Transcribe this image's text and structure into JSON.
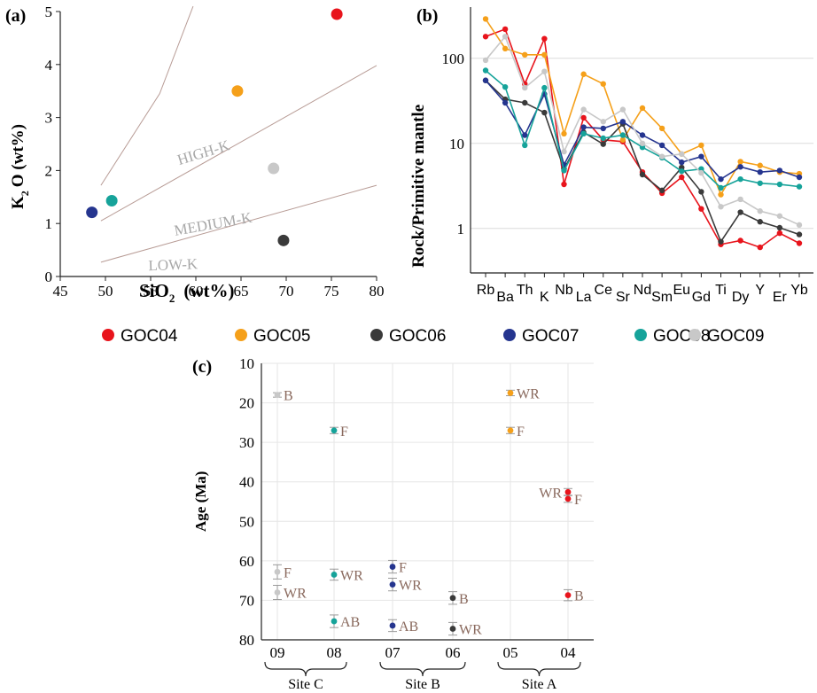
{
  "colors": {
    "GOC04": "#e8141c",
    "GOC05": "#f5a01a",
    "GOC06": "#3a3a3a",
    "GOC07": "#25358f",
    "GOC08": "#16a39a",
    "GOC09": "#c8c8c8",
    "trend_text": "#a8a8a8",
    "label_text": "#8a6a5e",
    "divider": "#b89a92"
  },
  "legend": {
    "items": [
      {
        "name": "GOC04",
        "label": "GOC04"
      },
      {
        "name": "GOC05",
        "label": "GOC05"
      },
      {
        "name": "GOC06",
        "label": "GOC06"
      },
      {
        "name": "GOC07",
        "label": "GOC07"
      },
      {
        "name": "GOC08",
        "label": "GOC08"
      },
      {
        "name": "GOC09",
        "label": "GOC09"
      }
    ]
  },
  "chart_data": [
    {
      "panel": "(a)",
      "type": "scatter",
      "xlabel": "SiO",
      "xlabel_sub": "2",
      "xlabel_unit": "(wt%)",
      "ylabel": "K",
      "ylabel_sub": "2",
      "ylabel_rest": "O (wt%)",
      "xlim": [
        45,
        80
      ],
      "ylim": [
        0,
        5
      ],
      "xticks": [
        45,
        50,
        55,
        60,
        65,
        70,
        75,
        80
      ],
      "yticks": [
        0,
        1,
        2,
        3,
        4,
        5
      ],
      "points": [
        {
          "sample": "GOC04",
          "x": 75.6,
          "y": 4.95
        },
        {
          "sample": "GOC05",
          "x": 64.6,
          "y": 3.5
        },
        {
          "sample": "GOC06",
          "x": 69.7,
          "y": 0.68
        },
        {
          "sample": "GOC07",
          "x": 48.5,
          "y": 1.21
        },
        {
          "sample": "GOC08",
          "x": 50.7,
          "y": 1.43
        },
        {
          "sample": "GOC09",
          "x": 68.6,
          "y": 2.04
        }
      ],
      "boundaries": [
        [
          [
            49.5,
            1.72
          ],
          [
            56,
            3.45
          ],
          [
            59.7,
            5.1
          ]
        ],
        [
          [
            49.5,
            1.05
          ],
          [
            80,
            3.98
          ]
        ],
        [
          [
            49.5,
            0.27
          ],
          [
            80,
            1.72
          ]
        ]
      ],
      "field_labels": [
        {
          "text": "HIGH-K",
          "x": 61,
          "y": 2.25,
          "angle": -17
        },
        {
          "text": "MEDIUM-K",
          "x": 62,
          "y": 0.9,
          "angle": -10
        },
        {
          "text": "LOW-K",
          "x": 57.5,
          "y": 0.13,
          "angle": -2
        }
      ]
    },
    {
      "panel": "(b)",
      "type": "line",
      "ylabel": "Rock/Primitive mantle",
      "scale": "log",
      "ylim": [
        0.3,
        400
      ],
      "yticks": [
        1,
        10,
        100
      ],
      "yticklabels": [
        "1",
        "10",
        "100"
      ],
      "categories": [
        "Rb",
        "Ba",
        "Th",
        "K",
        "Nb",
        "La",
        "Ce",
        "Sr",
        "Nd",
        "Sm",
        "Eu",
        "Gd",
        "Ti",
        "Dy",
        "Y",
        "Er",
        "Yb"
      ],
      "series": [
        {
          "name": "GOC04",
          "values": [
            180,
            220,
            50,
            170,
            3.3,
            20,
            11,
            10.5,
            4.6,
            2.6,
            4.0,
            1.7,
            0.65,
            0.72,
            0.6,
            0.88,
            0.67
          ]
        },
        {
          "name": "GOC05",
          "values": [
            290,
            130,
            110,
            110,
            13,
            65,
            50,
            11,
            26,
            15,
            7.5,
            9.5,
            2.5,
            6.1,
            5.5,
            4.6,
            4.4
          ]
        },
        {
          "name": "GOC06",
          "values": [
            55,
            33,
            30,
            23,
            5.0,
            13.5,
            9.8,
            17,
            4.3,
            2.8,
            5.2,
            2.7,
            0.7,
            1.55,
            1.2,
            1.02,
            0.85
          ]
        },
        {
          "name": "GOC07",
          "values": [
            55,
            30,
            12.5,
            38,
            5.6,
            15.5,
            15,
            18,
            12.5,
            9.5,
            6.0,
            7.0,
            3.8,
            5.3,
            4.6,
            4.8,
            4.0
          ]
        },
        {
          "name": "GOC08",
          "values": [
            72,
            46,
            9.5,
            45,
            4.8,
            13,
            11.5,
            12.5,
            9.0,
            6.8,
            4.7,
            5.0,
            3.0,
            3.8,
            3.4,
            3.3,
            3.1
          ]
        },
        {
          "name": "GOC09",
          "values": [
            95,
            180,
            45,
            70,
            8.0,
            25,
            18,
            25,
            10,
            7.0,
            7.5,
            4.5,
            1.8,
            2.2,
            1.6,
            1.4,
            1.1
          ]
        }
      ]
    },
    {
      "panel": "(c)",
      "type": "scatter",
      "ylabel": "Age (Ma)",
      "ylim": [
        10,
        80
      ],
      "y_inverted": true,
      "yticks": [
        10,
        20,
        30,
        40,
        50,
        60,
        70,
        80
      ],
      "categories": [
        "09",
        "08",
        "07",
        "06",
        "05",
        "04"
      ],
      "sites": [
        {
          "label": "Site C",
          "categories": [
            "09",
            "08"
          ]
        },
        {
          "label": "Site B",
          "categories": [
            "07",
            "06"
          ]
        },
        {
          "label": "Site A",
          "categories": [
            "05",
            "04"
          ]
        }
      ],
      "points": [
        {
          "category": "09",
          "sample": "GOC09",
          "age": 18.0,
          "err": 0.5,
          "label": "B",
          "label_side": "right"
        },
        {
          "category": "09",
          "sample": "GOC09",
          "age": 62.8,
          "err": 1.8,
          "label": "F",
          "label_side": "right"
        },
        {
          "category": "09",
          "sample": "GOC09",
          "age": 68.0,
          "err": 1.8,
          "label": "WR",
          "label_side": "right"
        },
        {
          "category": "08",
          "sample": "GOC08",
          "age": 27.0,
          "err": 0.8,
          "label": "F",
          "label_side": "right"
        },
        {
          "category": "08",
          "sample": "GOC08",
          "age": 63.5,
          "err": 1.4,
          "label": "WR",
          "label_side": "right"
        },
        {
          "category": "08",
          "sample": "GOC08",
          "age": 75.3,
          "err": 1.6,
          "label": "AB",
          "label_side": "right"
        },
        {
          "category": "07",
          "sample": "GOC07",
          "age": 61.5,
          "err": 1.6,
          "label": "F",
          "label_side": "right"
        },
        {
          "category": "07",
          "sample": "GOC07",
          "age": 66.0,
          "err": 1.6,
          "label": "WR",
          "label_side": "right"
        },
        {
          "category": "07",
          "sample": "GOC07",
          "age": 76.4,
          "err": 1.5,
          "label": "AB",
          "label_side": "right"
        },
        {
          "category": "06",
          "sample": "GOC06",
          "age": 69.4,
          "err": 1.6,
          "label": "B",
          "label_side": "right"
        },
        {
          "category": "06",
          "sample": "GOC06",
          "age": 77.2,
          "err": 1.6,
          "label": "WR",
          "label_side": "right"
        },
        {
          "category": "05",
          "sample": "GOC05",
          "age": 17.5,
          "err": 0.7,
          "label": "WR",
          "label_side": "right"
        },
        {
          "category": "05",
          "sample": "GOC05",
          "age": 27.0,
          "err": 0.8,
          "label": "F",
          "label_side": "right"
        },
        {
          "category": "04",
          "sample": "GOC04",
          "age": 42.6,
          "err": 0.9,
          "label": "WR",
          "label_side": "left"
        },
        {
          "category": "04",
          "sample": "GOC04",
          "age": 44.3,
          "err": 0.9,
          "label": "F",
          "label_side": "right"
        },
        {
          "category": "04",
          "sample": "GOC04",
          "age": 68.7,
          "err": 1.4,
          "label": "B",
          "label_side": "right"
        }
      ]
    }
  ]
}
